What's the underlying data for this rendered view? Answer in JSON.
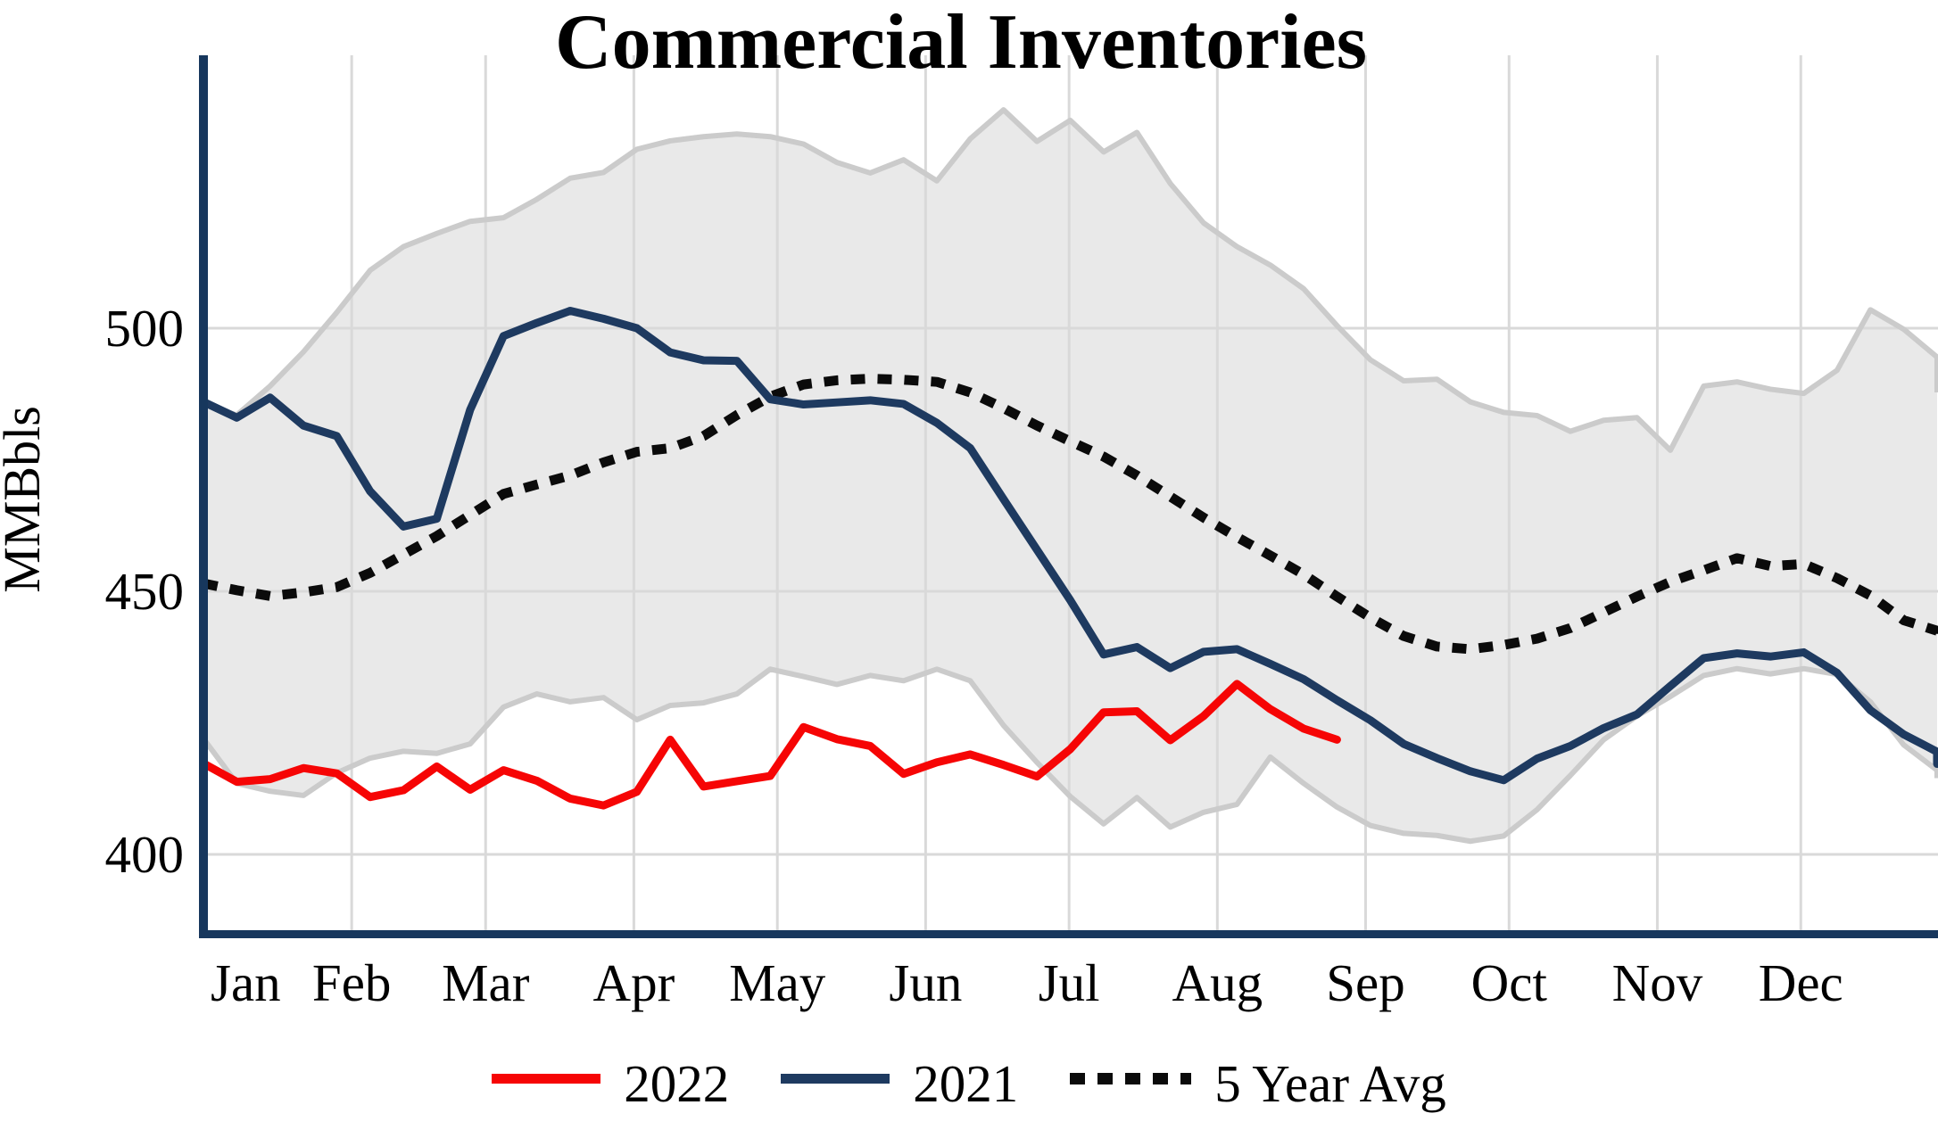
{
  "page": {
    "background_color": "#ffffff"
  },
  "chart_data": {
    "type": "line",
    "title": "Commercial Inventories",
    "ylabel": "MMBbls",
    "unit": "MMBbls",
    "grid": true,
    "legend_position": "bottom-center",
    "ylim": [
      384,
      553
    ],
    "y_ticks": [
      400,
      450,
      500
    ],
    "x_tick_labels": [
      "Jan",
      "Feb",
      "Mar",
      "Apr",
      "May",
      "Jun",
      "Jul",
      "Aug",
      "Sep",
      "Oct",
      "Nov",
      "Dec"
    ],
    "x_resolution": "weekly",
    "colors": {
      "series_2022": "#f60505",
      "series_2021": "#1e3a60",
      "series_5yr_avg": "#0b0b0b",
      "band_fill": "#e9e9e9",
      "band_edge": "#cbcbcb",
      "gridline": "#d9d9d9",
      "axis": "#17375d"
    },
    "band": {
      "name": "5-year range",
      "max": [
        485.5,
        483.5,
        489.0,
        495.5,
        503.0,
        511.0,
        515.5,
        518.0,
        520.3,
        521.0,
        524.5,
        528.5,
        529.6,
        534.0,
        535.6,
        536.4,
        536.9,
        536.4,
        535.0,
        531.5,
        529.5,
        532.0,
        528.0,
        536.0,
        541.5,
        535.5,
        539.5,
        533.5,
        537.2,
        527.5,
        520.0,
        515.5,
        512.0,
        507.5,
        500.5,
        494.0,
        490.0,
        490.3,
        486.0,
        484.0,
        483.4,
        480.4,
        482.5,
        483.0,
        476.8,
        489.0,
        489.8,
        488.4,
        487.6,
        492.0,
        503.5,
        499.8,
        494.5,
        487.8
      ],
      "min": [
        422.0,
        413.5,
        412.0,
        411.2,
        415.5,
        418.3,
        419.6,
        419.2,
        421.0,
        428.0,
        430.5,
        429.0,
        429.8,
        425.6,
        428.3,
        428.8,
        430.5,
        435.2,
        433.8,
        432.3,
        434.0,
        433.0,
        435.2,
        433.0,
        424.5,
        417.5,
        411.0,
        405.8,
        410.8,
        405.2,
        408.0,
        409.5,
        418.5,
        413.5,
        409.0,
        405.5,
        404.0,
        403.6,
        402.5,
        403.5,
        408.5,
        415.0,
        421.8,
        426.3,
        430.0,
        434.0,
        435.3,
        434.3,
        435.3,
        434.2,
        429.0,
        420.8,
        416.0,
        414.5
      ]
    },
    "series": [
      {
        "name": "2022",
        "style": "solid",
        "color": "#f60505",
        "values": [
          417.3,
          413.8,
          414.3,
          416.4,
          415.4,
          410.9,
          412.2,
          416.7,
          412.3,
          416.0,
          414.0,
          410.6,
          409.3,
          411.9,
          421.8,
          412.9,
          413.9,
          414.9,
          424.2,
          421.9,
          420.6,
          415.3,
          417.5,
          419.0,
          417.0,
          414.8,
          420.0,
          427.0,
          427.2,
          421.7,
          426.3,
          432.4,
          427.6,
          423.9,
          421.8
        ]
      },
      {
        "name": "2021",
        "style": "solid",
        "color": "#1e3a60",
        "values": [
          486.0,
          483.0,
          486.8,
          481.5,
          479.5,
          469.0,
          462.3,
          463.8,
          484.5,
          498.5,
          501.0,
          503.3,
          501.8,
          500.0,
          495.4,
          493.9,
          493.8,
          486.5,
          485.5,
          485.9,
          486.3,
          485.6,
          482.0,
          477.2,
          467.5,
          457.9,
          448.3,
          438.0,
          439.4,
          435.4,
          438.5,
          439.0,
          436.2,
          433.3,
          429.3,
          425.5,
          421.0,
          418.3,
          415.8,
          414.1,
          418.2,
          420.6,
          424.0,
          426.6,
          432.0,
          437.3,
          438.2,
          437.6,
          438.4,
          434.5,
          427.4,
          422.8,
          419.5,
          417.2
        ]
      },
      {
        "name": "5 Year Avg",
        "style": "dotted",
        "color": "#0b0b0b",
        "values": [
          451.5,
          450.2,
          449.1,
          449.8,
          450.8,
          453.5,
          457.0,
          460.5,
          464.5,
          468.5,
          470.3,
          472.0,
          474.5,
          476.5,
          477.2,
          479.5,
          483.5,
          487.0,
          489.3,
          490.1,
          490.4,
          490.2,
          489.8,
          487.8,
          484.8,
          481.5,
          478.5,
          475.6,
          472.0,
          468.0,
          464.0,
          460.3,
          456.8,
          453.2,
          449.0,
          445.0,
          441.5,
          439.5,
          439.0,
          439.8,
          441.0,
          443.0,
          446.0,
          449.0,
          451.8,
          454.0,
          456.3,
          454.8,
          455.2,
          452.5,
          449.2,
          444.5,
          442.5,
          441.0
        ]
      }
    ],
    "legend": [
      {
        "label": "2022",
        "color": "#f60505",
        "style": "solid"
      },
      {
        "label": "2021",
        "color": "#1e3a60",
        "style": "solid"
      },
      {
        "label": "5 Year Avg",
        "color": "#0b0b0b",
        "style": "dotted"
      }
    ]
  }
}
